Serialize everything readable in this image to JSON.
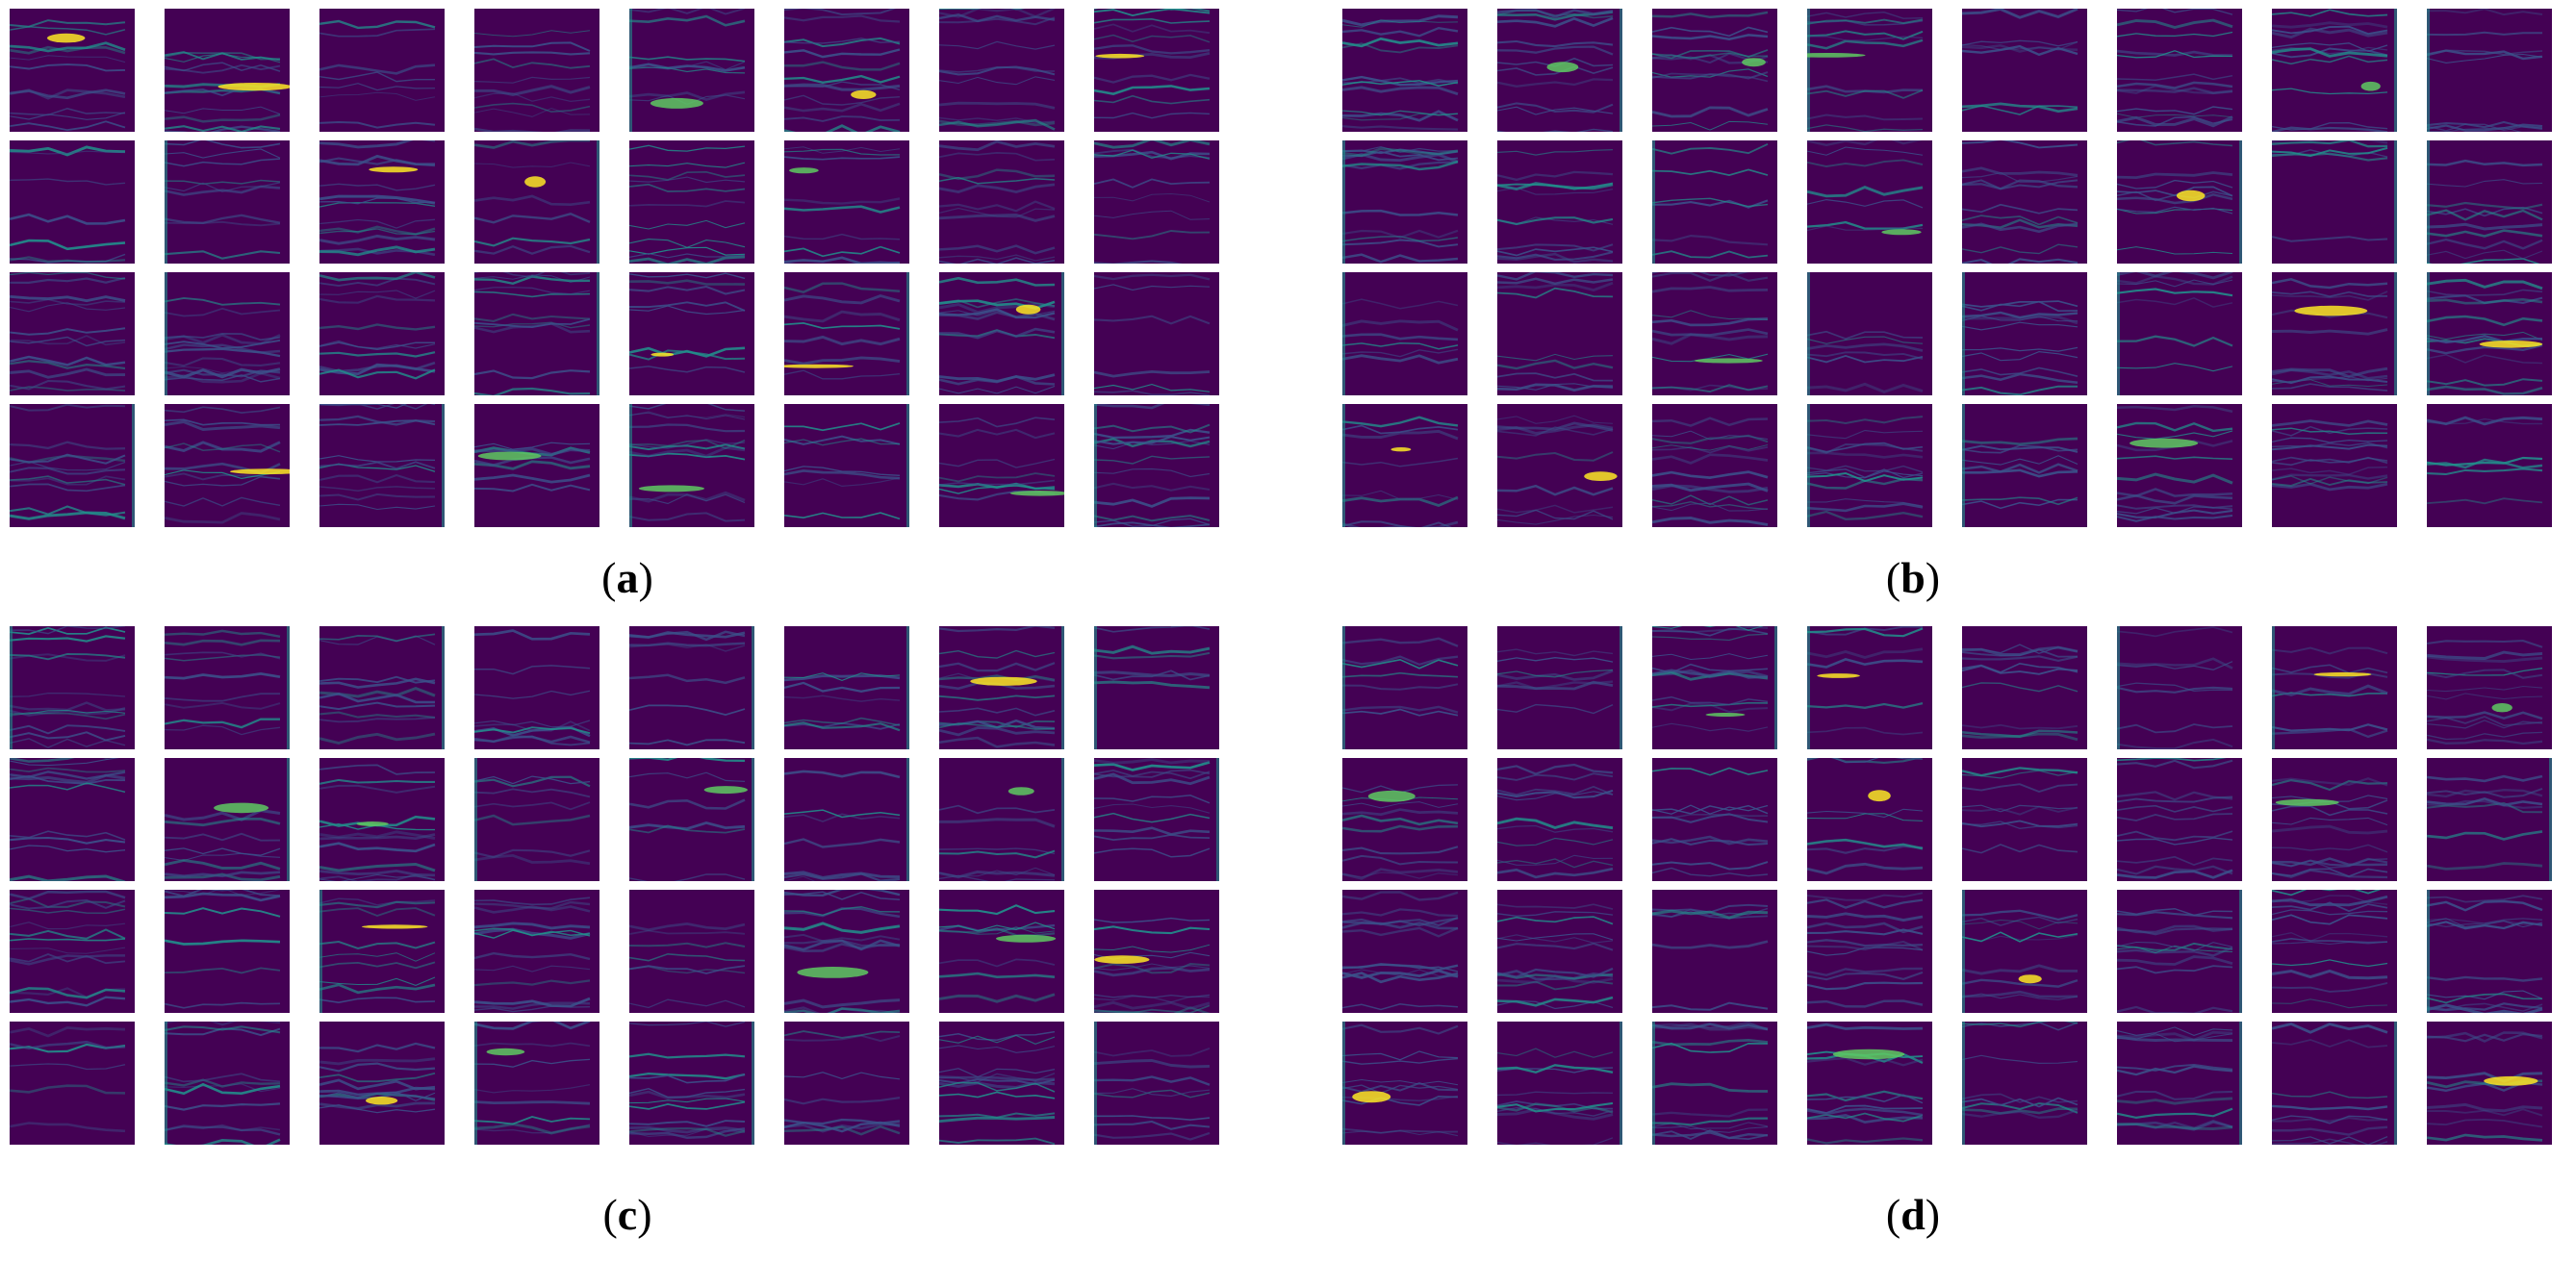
{
  "figure": {
    "colormap": [
      "#440154",
      "#3b528b",
      "#21918c",
      "#5ec962",
      "#fde725"
    ],
    "background": "#440154",
    "grid": {
      "rows": 4,
      "cols": 8
    },
    "panels": [
      {
        "id": "a",
        "label": "a",
        "paren_open": "(",
        "paren_close": ")"
      },
      {
        "id": "b",
        "label": "b",
        "paren_open": "(",
        "paren_close": ")"
      },
      {
        "id": "c",
        "label": "c",
        "paren_open": "(",
        "paren_close": ")"
      },
      {
        "id": "d",
        "label": "d",
        "paren_open": "(",
        "paren_close": ")"
      }
    ]
  }
}
